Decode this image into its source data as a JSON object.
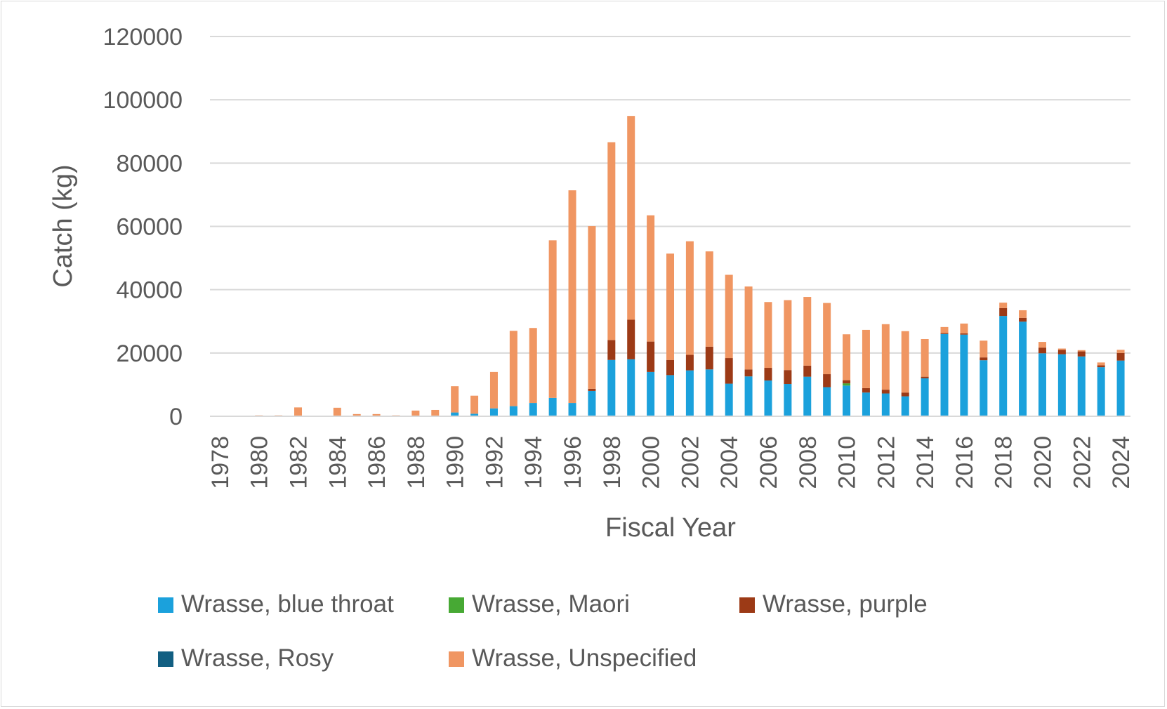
{
  "chart_data": {
    "type": "bar",
    "stacked": true,
    "title": "",
    "xlabel": "Fiscal Year",
    "ylabel": "Catch (kg)",
    "ylim": [
      0,
      120000
    ],
    "yticks": [
      "0",
      "20000",
      "40000",
      "60000",
      "80000",
      "100000",
      "120000"
    ],
    "xtick_labels": [
      "1978",
      "1980",
      "1982",
      "1984",
      "1986",
      "1988",
      "1990",
      "1992",
      "1994",
      "1996",
      "1998",
      "2000",
      "2002",
      "2004",
      "2006",
      "2008",
      "2010",
      "2012",
      "2014",
      "2016",
      "2018",
      "2020",
      "2022",
      "2024"
    ],
    "grid": "horizontal",
    "legend_position": "bottom",
    "categories": [
      1978,
      1979,
      1980,
      1981,
      1982,
      1983,
      1984,
      1985,
      1986,
      1987,
      1988,
      1989,
      1990,
      1991,
      1992,
      1993,
      1994,
      1995,
      1996,
      1997,
      1998,
      1999,
      2000,
      2001,
      2002,
      2003,
      2004,
      2005,
      2006,
      2007,
      2008,
      2009,
      2010,
      2011,
      2012,
      2013,
      2014,
      2015,
      2016,
      2017,
      2018,
      2019,
      2020,
      2021,
      2022,
      2023,
      2024
    ],
    "series": [
      {
        "name": "Wrasse, blue throat",
        "color": "#1ba1dc",
        "values": [
          0,
          0,
          0,
          0,
          0,
          0,
          0,
          0,
          0,
          0,
          0,
          0,
          1200,
          800,
          2500,
          3200,
          4200,
          5800,
          4200,
          8000,
          17800,
          18000,
          14000,
          13000,
          14500,
          14800,
          10300,
          12600,
          11300,
          10200,
          12500,
          9200,
          9700,
          7500,
          7200,
          6300,
          12000,
          26000,
          25800,
          17700,
          31700,
          29900,
          19900,
          19600,
          18900,
          15500,
          17600
        ]
      },
      {
        "name": "Wrasse, Maori",
        "color": "#47a934",
        "values": [
          0,
          0,
          0,
          0,
          0,
          0,
          0,
          0,
          0,
          0,
          0,
          0,
          0,
          0,
          0,
          0,
          0,
          0,
          0,
          0,
          0,
          0,
          0,
          0,
          0,
          0,
          0,
          0,
          0,
          0,
          0,
          0,
          700,
          0,
          0,
          0,
          0,
          0,
          0,
          0,
          0,
          0,
          0,
          0,
          0,
          0,
          0
        ]
      },
      {
        "name": "Wrasse, purple",
        "color": "#9c3a16",
        "values": [
          0,
          0,
          0,
          0,
          0,
          0,
          0,
          0,
          0,
          0,
          0,
          0,
          0,
          0,
          0,
          0,
          0,
          0,
          0,
          700,
          6300,
          12500,
          9600,
          4800,
          4900,
          7200,
          8100,
          2200,
          4000,
          4400,
          3500,
          4100,
          1000,
          1400,
          1200,
          1200,
          500,
          300,
          400,
          900,
          2500,
          1200,
          1800,
          1400,
          1600,
          600,
          2400
        ]
      },
      {
        "name": "Wrasse, Rosy",
        "color": "#125f82",
        "values": [
          0,
          0,
          0,
          0,
          0,
          0,
          0,
          0,
          0,
          0,
          0,
          0,
          0,
          0,
          0,
          0,
          0,
          0,
          0,
          0,
          0,
          0,
          0,
          0,
          0,
          0,
          0,
          0,
          0,
          0,
          0,
          0,
          0,
          0,
          0,
          0,
          0,
          0,
          0,
          0,
          0,
          0,
          0,
          0,
          0,
          0,
          0
        ]
      },
      {
        "name": "Wrasse, Unspecified",
        "color": "#f09662",
        "values": [
          0,
          0,
          300,
          300,
          2800,
          0,
          2700,
          700,
          700,
          300,
          1800,
          2000,
          8300,
          5700,
          11500,
          23800,
          23700,
          49800,
          67200,
          51400,
          62500,
          64400,
          39900,
          33600,
          35900,
          30100,
          26300,
          26200,
          20800,
          22100,
          21700,
          22500,
          14500,
          18400,
          20700,
          19400,
          11900,
          1900,
          3100,
          5300,
          1700,
          2400,
          1800,
          400,
          400,
          900,
          1000
        ]
      }
    ]
  }
}
